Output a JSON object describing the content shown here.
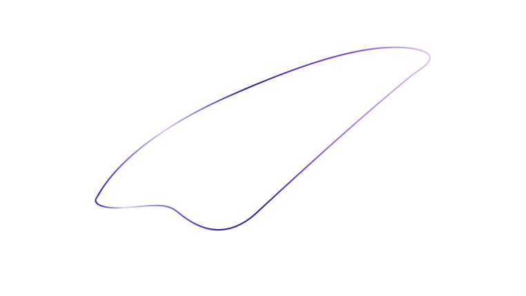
{
  "background_color": "#ffffff",
  "shape": {
    "kind": "closed-loop-outline",
    "stroke_colors": {
      "dark_indigo": "#3a1fa6",
      "mid_purple": "#7b4fc9",
      "light_lavender": "#d9c6ee"
    }
  }
}
